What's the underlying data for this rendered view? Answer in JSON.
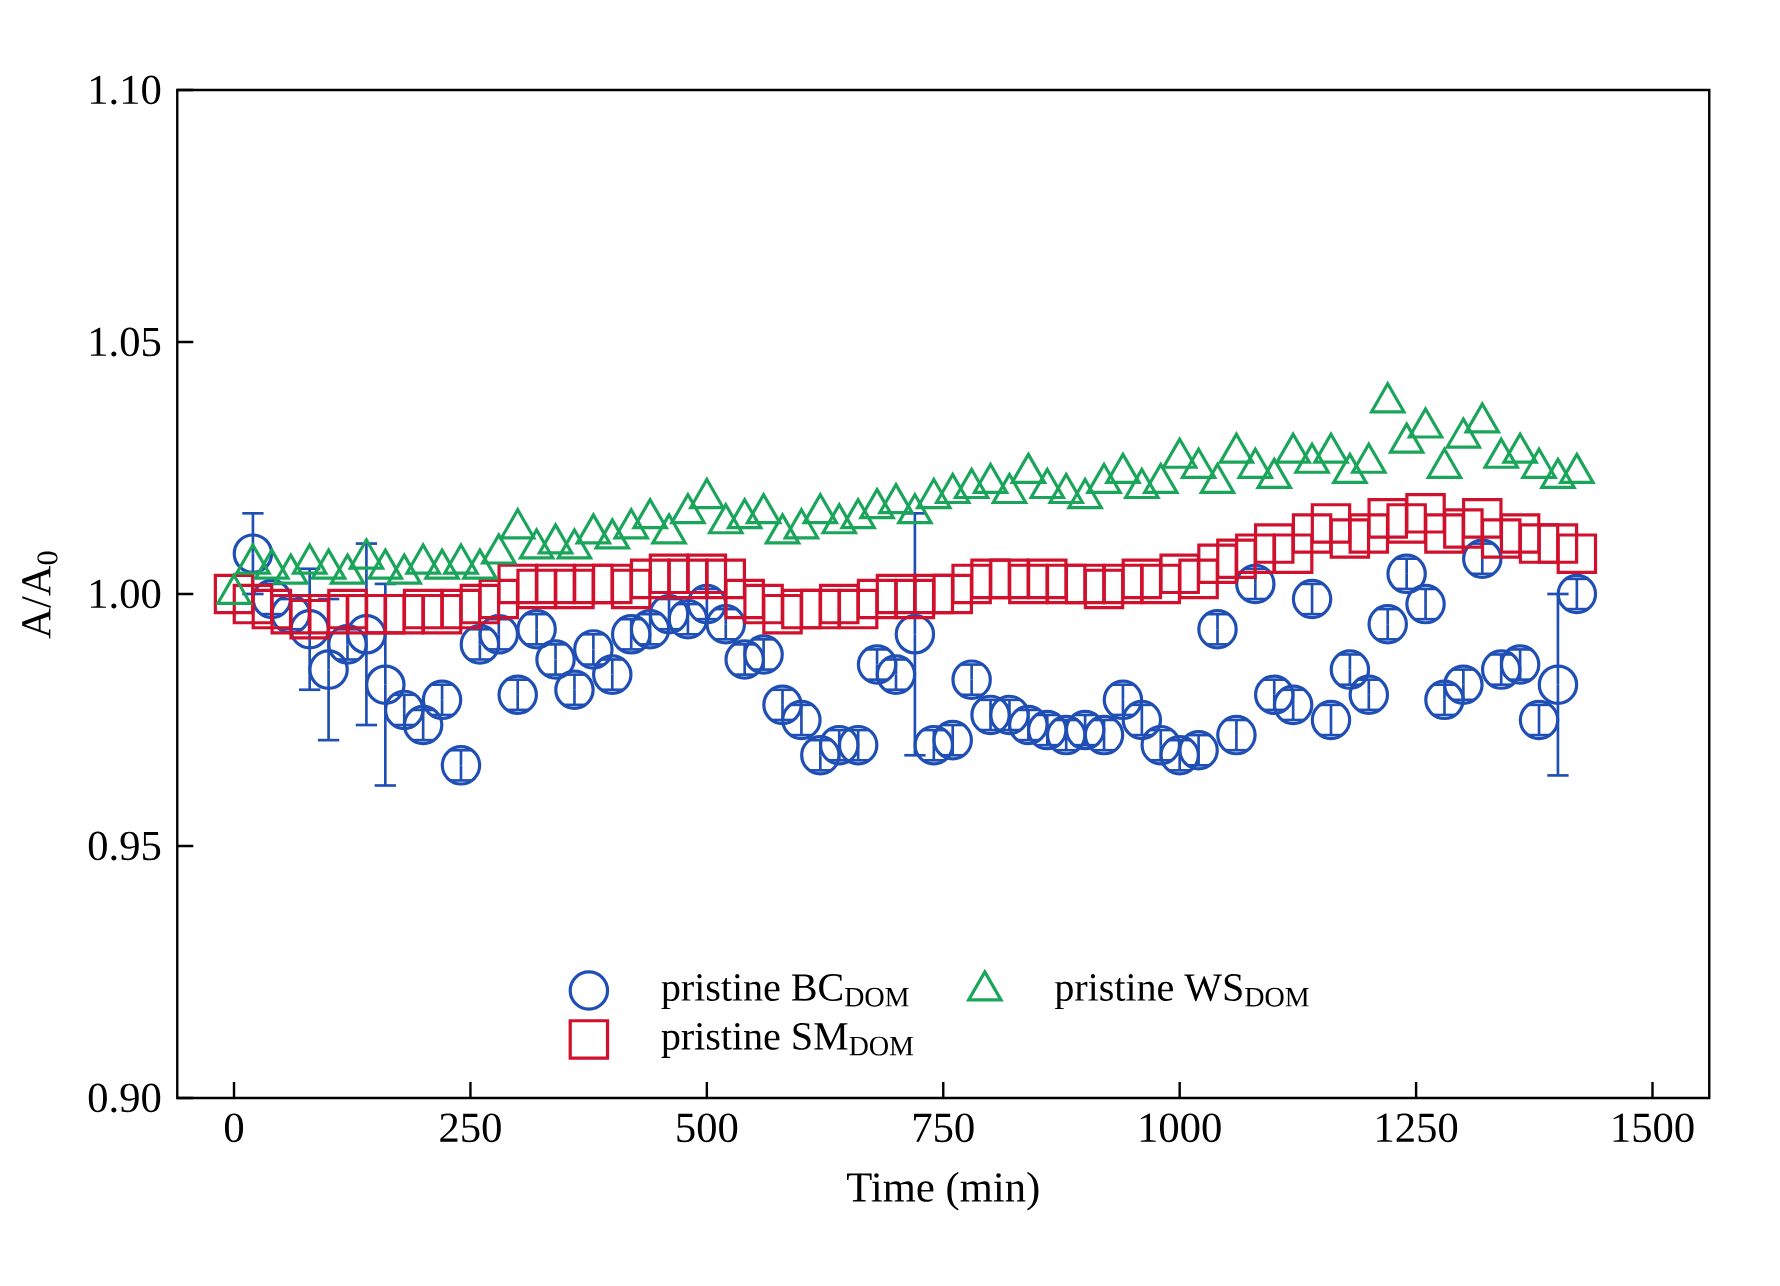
{
  "chart_data": {
    "type": "scatter",
    "xlabel": "Time (min)",
    "ylabel": "A/A$_{0}$",
    "xlim": [
      -60,
      1560
    ],
    "ylim": [
      0.9,
      1.1
    ],
    "xticks": [
      0,
      250,
      500,
      750,
      1000,
      1250,
      1500
    ],
    "yticks": [
      {
        "value": 0.9,
        "label": "0.90"
      },
      {
        "value": 0.95,
        "label": "0.95"
      },
      {
        "value": 1.0,
        "label": "1.00"
      },
      {
        "value": 1.05,
        "label": "1.05"
      },
      {
        "value": 1.1,
        "label": "1.10"
      }
    ],
    "legend": "bottom",
    "grid": false,
    "series": [
      {
        "name": "pristine BC$_{DOM}$",
        "color": "#1f4fb4",
        "marker": "circle",
        "x": [
          20,
          40,
          60,
          80,
          100,
          120,
          140,
          160,
          180,
          200,
          220,
          240,
          260,
          280,
          300,
          320,
          340,
          360,
          380,
          400,
          420,
          440,
          460,
          480,
          500,
          520,
          540,
          560,
          580,
          600,
          620,
          640,
          660,
          680,
          700,
          720,
          740,
          760,
          780,
          800,
          820,
          840,
          860,
          880,
          900,
          920,
          940,
          960,
          980,
          1000,
          1020,
          1040,
          1060,
          1080,
          1100,
          1120,
          1140,
          1160,
          1180,
          1200,
          1220,
          1240,
          1260,
          1280,
          1300,
          1320,
          1340,
          1360,
          1380,
          1400,
          1420
        ],
        "values": [
          1.008,
          0.999,
          0.996,
          0.993,
          0.985,
          0.99,
          0.992,
          0.982,
          0.977,
          0.974,
          0.979,
          0.966,
          0.99,
          0.992,
          0.98,
          0.993,
          0.987,
          0.981,
          0.989,
          0.984,
          0.992,
          0.993,
          0.996,
          0.995,
          0.998,
          0.994,
          0.987,
          0.988,
          0.978,
          0.975,
          0.968,
          0.97,
          0.97,
          0.986,
          0.984,
          0.992,
          0.97,
          0.971,
          0.983,
          0.976,
          0.976,
          0.974,
          0.973,
          0.972,
          0.973,
          0.972,
          0.979,
          0.975,
          0.97,
          0.968,
          0.969,
          0.993,
          0.972,
          1.002,
          0.98,
          0.978,
          0.999,
          0.975,
          0.985,
          0.98,
          0.994,
          1.004,
          0.998,
          0.979,
          0.982,
          1.007,
          0.985,
          0.986,
          0.975,
          0.982,
          1.0
        ],
        "errors": [
          0.008,
          0.003,
          0.003,
          0.012,
          0.014,
          0.003,
          0.018,
          0.02,
          0.003,
          0.003,
          0.003,
          0.003,
          0.003,
          0.003,
          0.003,
          0.003,
          0.003,
          0.003,
          0.003,
          0.003,
          0.003,
          0.003,
          0.003,
          0.003,
          0.003,
          0.003,
          0.003,
          0.003,
          0.003,
          0.003,
          0.003,
          0.003,
          0.003,
          0.003,
          0.003,
          0.024,
          0.003,
          0.003,
          0.003,
          0.003,
          0.003,
          0.003,
          0.003,
          0.003,
          0.003,
          0.003,
          0.003,
          0.003,
          0.003,
          0.003,
          0.003,
          0.003,
          0.003,
          0.003,
          0.003,
          0.003,
          0.003,
          0.003,
          0.003,
          0.003,
          0.003,
          0.003,
          0.003,
          0.003,
          0.003,
          0.003,
          0.003,
          0.003,
          0.003,
          0.018,
          0.003
        ]
      },
      {
        "name": "pristine SM$_{DOM}$",
        "color": "#d0102c",
        "marker": "square",
        "x": [
          0,
          20,
          40,
          60,
          80,
          100,
          120,
          140,
          160,
          180,
          200,
          220,
          240,
          260,
          280,
          300,
          320,
          340,
          360,
          380,
          400,
          420,
          440,
          460,
          480,
          500,
          520,
          540,
          560,
          580,
          600,
          620,
          640,
          660,
          680,
          700,
          720,
          740,
          760,
          780,
          800,
          820,
          840,
          860,
          880,
          900,
          920,
          940,
          960,
          980,
          1000,
          1020,
          1040,
          1060,
          1080,
          1100,
          1120,
          1140,
          1160,
          1180,
          1200,
          1220,
          1240,
          1260,
          1280,
          1300,
          1320,
          1340,
          1360,
          1380,
          1400,
          1420
        ],
        "values": [
          1.0,
          0.998,
          0.997,
          0.996,
          0.995,
          0.996,
          0.997,
          0.996,
          0.996,
          0.996,
          0.997,
          0.996,
          0.997,
          0.998,
          0.999,
          1.002,
          1.001,
          1.002,
          1.001,
          1.002,
          1.002,
          1.001,
          1.003,
          1.004,
          1.003,
          1.004,
          1.003,
          0.999,
          0.998,
          0.996,
          0.997,
          0.997,
          0.998,
          0.997,
          0.999,
          1.0,
          0.999,
          1.0,
          1.0,
          1.002,
          1.003,
          1.003,
          1.002,
          1.003,
          1.002,
          1.002,
          1.001,
          1.002,
          1.003,
          1.002,
          1.004,
          1.003,
          1.006,
          1.007,
          1.008,
          1.01,
          1.008,
          1.012,
          1.014,
          1.011,
          1.012,
          1.015,
          1.014,
          1.016,
          1.012,
          1.013,
          1.015,
          1.011,
          1.012,
          1.01,
          1.01,
          1.008
        ]
      },
      {
        "name": "pristine WS$_{DOM}$",
        "color": "#1aa55a",
        "marker": "triangle",
        "x": [
          0,
          20,
          40,
          60,
          80,
          100,
          120,
          140,
          160,
          180,
          200,
          220,
          240,
          260,
          280,
          300,
          320,
          340,
          360,
          380,
          400,
          420,
          440,
          460,
          480,
          500,
          520,
          540,
          560,
          580,
          600,
          620,
          640,
          660,
          680,
          700,
          720,
          740,
          760,
          780,
          800,
          820,
          840,
          860,
          880,
          900,
          920,
          940,
          960,
          980,
          1000,
          1020,
          1040,
          1060,
          1080,
          1100,
          1120,
          1140,
          1160,
          1180,
          1200,
          1220,
          1240,
          1260,
          1280,
          1300,
          1320,
          1340,
          1360,
          1380,
          1400,
          1420
        ],
        "values": [
          1.0,
          1.006,
          1.005,
          1.004,
          1.006,
          1.005,
          1.004,
          1.007,
          1.005,
          1.004,
          1.006,
          1.005,
          1.006,
          1.005,
          1.008,
          1.013,
          1.009,
          1.01,
          1.009,
          1.012,
          1.011,
          1.013,
          1.015,
          1.012,
          1.016,
          1.019,
          1.014,
          1.015,
          1.016,
          1.012,
          1.013,
          1.016,
          1.014,
          1.015,
          1.017,
          1.018,
          1.016,
          1.019,
          1.02,
          1.021,
          1.022,
          1.02,
          1.024,
          1.021,
          1.02,
          1.019,
          1.022,
          1.024,
          1.021,
          1.022,
          1.027,
          1.025,
          1.022,
          1.028,
          1.025,
          1.023,
          1.028,
          1.026,
          1.028,
          1.024,
          1.026,
          1.038,
          1.03,
          1.033,
          1.025,
          1.031,
          1.034,
          1.027,
          1.028,
          1.025,
          1.023,
          1.024
        ]
      }
    ]
  }
}
